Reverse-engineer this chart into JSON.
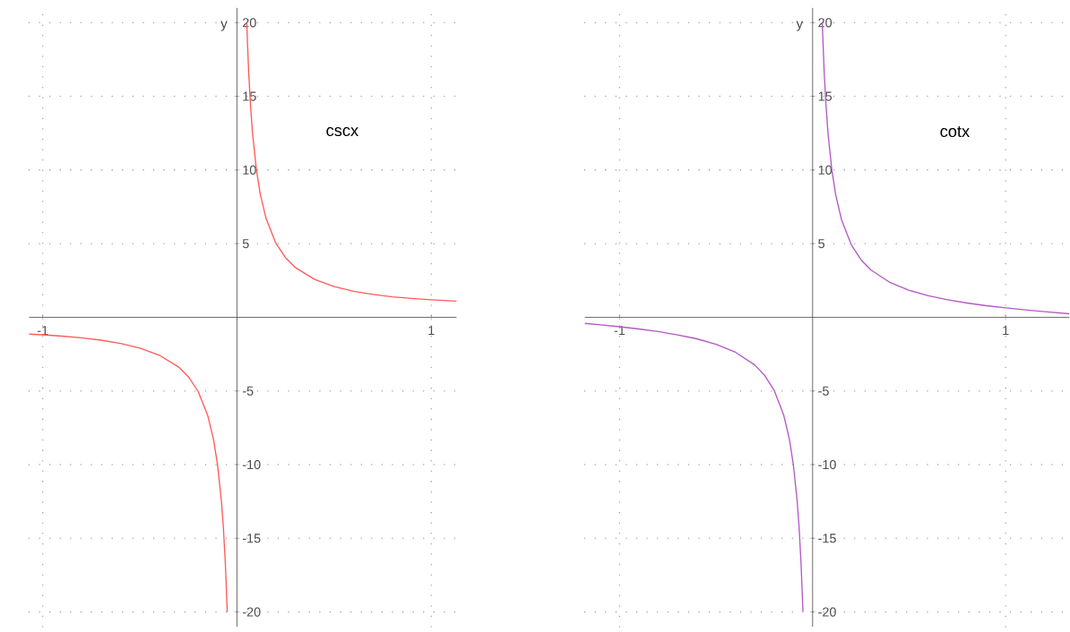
{
  "chart_data": [
    {
      "type": "line",
      "ylabel": "y",
      "xlim": [
        -1.07,
        1.13
      ],
      "ylim": [
        -21,
        21
      ],
      "xticks": [
        -1,
        1
      ],
      "yticks": [
        -20,
        -15,
        -10,
        -5,
        5,
        10,
        15,
        20
      ],
      "grid": true,
      "series": [
        {
          "name": "cscx",
          "color": "#ff5a5a",
          "x": [
            -1.07,
            -1.0,
            -0.9,
            -0.8,
            -0.7,
            -0.6,
            -0.5,
            -0.4,
            -0.3,
            -0.25,
            -0.2,
            -0.15,
            -0.12,
            -0.1,
            -0.08,
            -0.07,
            -0.06,
            -0.05,
            0,
            0.05,
            0.06,
            0.07,
            0.08,
            0.1,
            0.12,
            0.15,
            0.2,
            0.25,
            0.3,
            0.4,
            0.5,
            0.6,
            0.7,
            0.8,
            0.9,
            1.0,
            1.13
          ],
          "values": [
            -1.14,
            -1.19,
            -1.28,
            -1.39,
            -1.55,
            -1.77,
            -2.09,
            -2.57,
            -3.38,
            -4.04,
            -5.03,
            -6.69,
            -8.35,
            -10.02,
            -12.51,
            -14.3,
            -16.68,
            -20.0,
            null,
            20.0,
            16.68,
            14.3,
            12.51,
            10.02,
            8.35,
            6.69,
            5.03,
            4.04,
            3.38,
            2.57,
            2.09,
            1.77,
            1.55,
            1.39,
            1.28,
            1.19,
            1.1
          ]
        }
      ]
    },
    {
      "type": "line",
      "ylabel": "y",
      "xlim": [
        -1.18,
        1.33
      ],
      "ylim": [
        -21,
        21
      ],
      "xticks": [
        -1,
        1
      ],
      "yticks": [
        -20,
        -15,
        -10,
        -5,
        5,
        10,
        15,
        20
      ],
      "grid": true,
      "series": [
        {
          "name": "cotx",
          "color": "#b259c4",
          "x": [
            -1.18,
            -1.1,
            -1.0,
            -0.9,
            -0.8,
            -0.7,
            -0.6,
            -0.5,
            -0.4,
            -0.3,
            -0.25,
            -0.2,
            -0.15,
            -0.12,
            -0.1,
            -0.08,
            -0.07,
            -0.06,
            -0.05,
            0,
            0.05,
            0.06,
            0.07,
            0.08,
            0.1,
            0.12,
            0.15,
            0.2,
            0.25,
            0.3,
            0.4,
            0.5,
            0.6,
            0.7,
            0.8,
            0.9,
            1.0,
            1.1,
            1.2,
            1.33
          ],
          "values": [
            -0.41,
            -0.51,
            -0.64,
            -0.79,
            -0.97,
            -1.19,
            -1.46,
            -1.83,
            -2.37,
            -3.23,
            -3.92,
            -4.93,
            -6.62,
            -8.29,
            -9.97,
            -12.47,
            -14.26,
            -16.65,
            -19.98,
            null,
            19.98,
            16.65,
            14.26,
            12.47,
            9.97,
            8.29,
            6.62,
            4.93,
            3.92,
            3.23,
            2.37,
            1.83,
            1.46,
            1.19,
            0.97,
            0.79,
            0.64,
            0.51,
            0.39,
            0.24
          ]
        }
      ]
    }
  ]
}
